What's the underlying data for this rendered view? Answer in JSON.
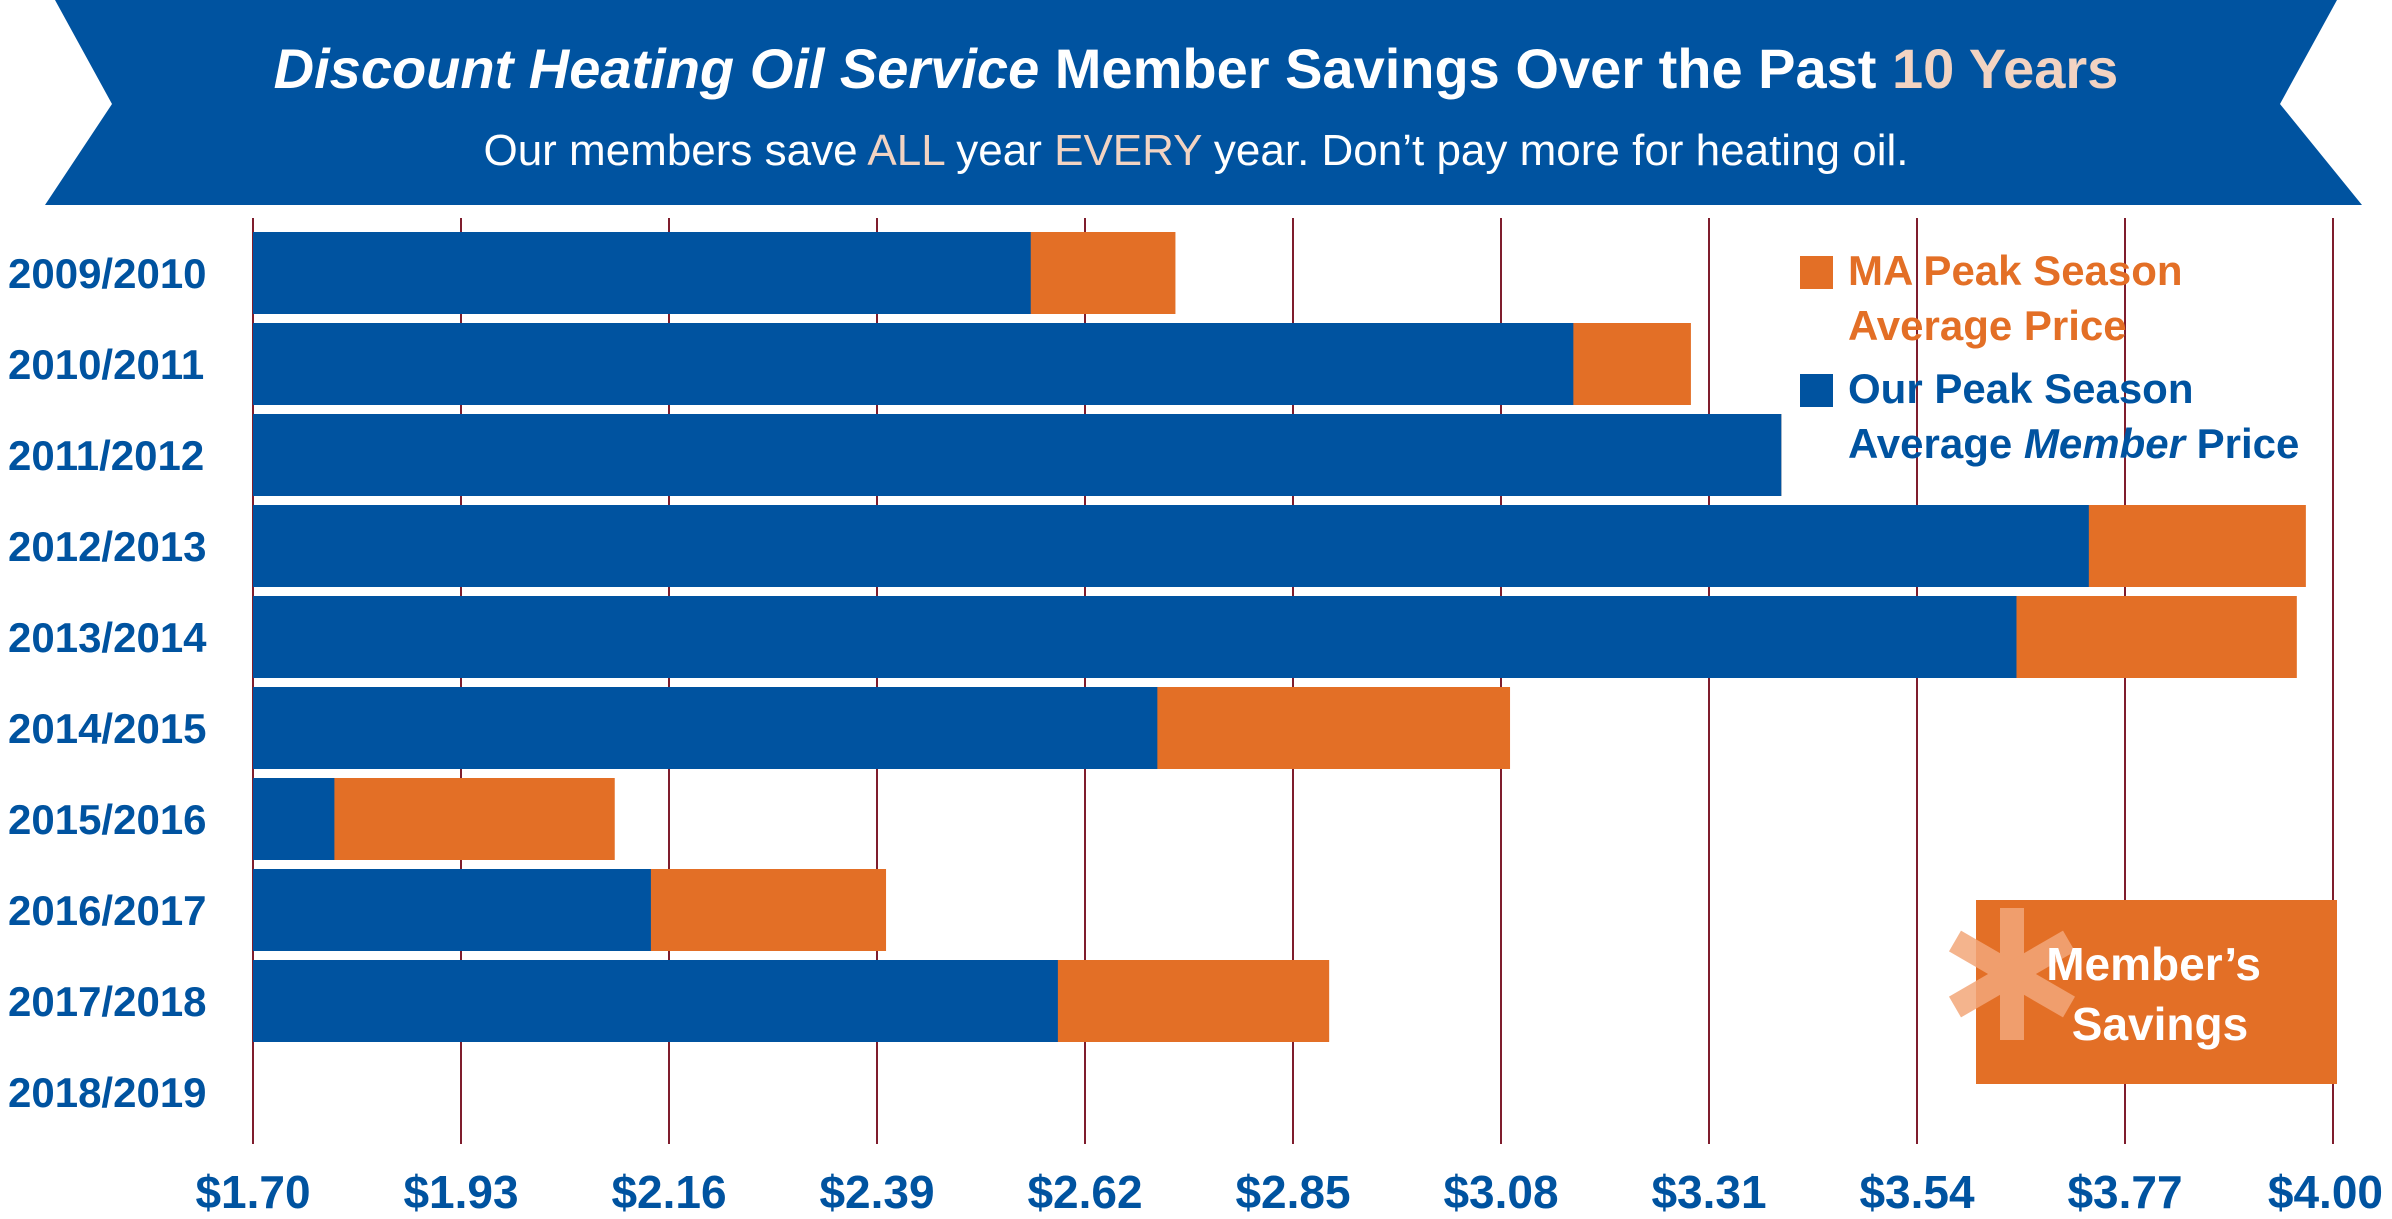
{
  "header": {
    "title_italic": "Discount Heating Oil Service",
    "title_main": " Member Savings Over the Past ",
    "title_highlight": "10 Years",
    "subtitle_parts": [
      "Our members save ",
      "ALL",
      " year ",
      "EVERY",
      " year. Don’t pay more for heating oil."
    ]
  },
  "colors": {
    "banner": "#0053a0",
    "member": "#0053a0",
    "ma": "#e36f26",
    "grid": "#7f1d2d",
    "highlight": "#f2d3c2",
    "axis_text": "#0053a0"
  },
  "legend": {
    "ma_line1": "MA Peak Season",
    "ma_line2": "Average Price",
    "member_line1": "Our Peak Season",
    "member_line2_pre": "Average ",
    "member_line2_italic": "Member",
    "member_line2_post": " Price"
  },
  "savings_badge": {
    "line1": "Member’s",
    "line2": "Savings"
  },
  "chart_data": {
    "type": "bar",
    "orientation": "horizontal",
    "stacked": "overlay",
    "categories": [
      "2009/2010",
      "2010/2011",
      "2011/2012",
      "2012/2013",
      "2013/2014",
      "2014/2015",
      "2015/2016",
      "2016/2017",
      "2017/2018",
      "2018/2019"
    ],
    "series": [
      {
        "name": "Our Peak Season Average Member Price",
        "values": [
          2.56,
          3.16,
          3.39,
          3.73,
          3.65,
          2.7,
          1.79,
          2.14,
          2.59,
          null
        ]
      },
      {
        "name": "MA Peak Season Average Price",
        "values": [
          2.72,
          3.29,
          3.39,
          3.97,
          3.96,
          3.09,
          2.1,
          2.4,
          2.89,
          null
        ]
      }
    ],
    "x_ticks": [
      "$1.70",
      "$1.93",
      "$2.16",
      "$2.39",
      "$2.62",
      "$2.85",
      "$3.08",
      "$3.31",
      "$3.54",
      "$3.77",
      "$4.00"
    ],
    "xlim": [
      1.7,
      4.0
    ],
    "grid": true,
    "legend_position": "top-right"
  }
}
